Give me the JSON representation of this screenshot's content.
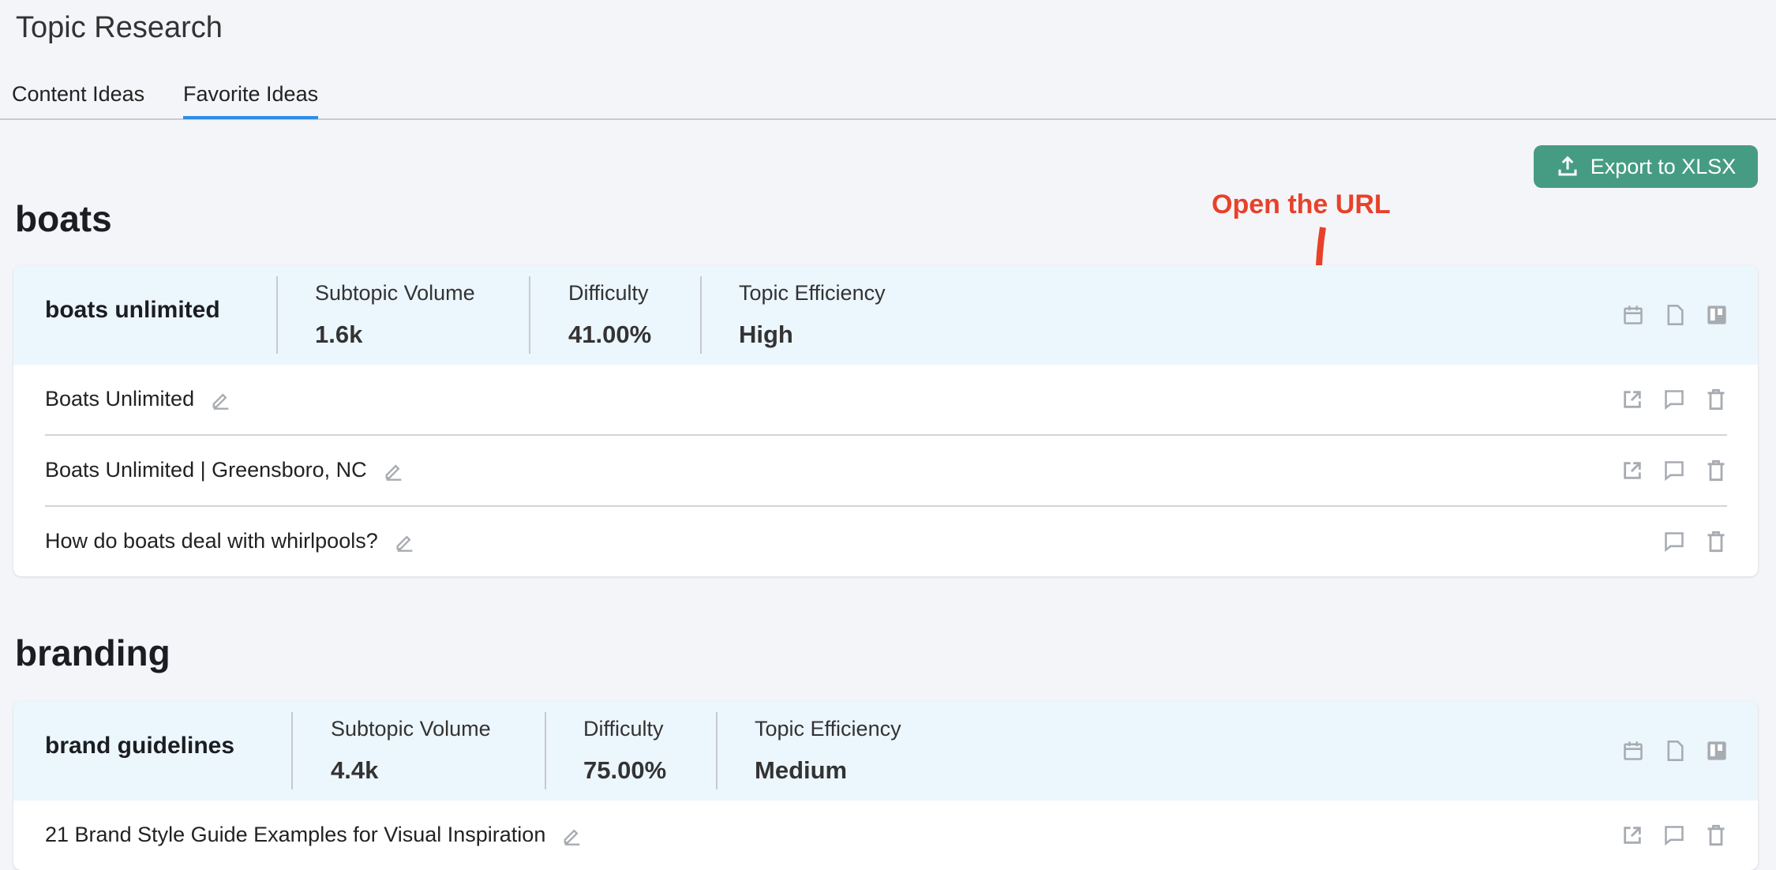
{
  "header": {
    "title": "Topic Research"
  },
  "tabs": [
    {
      "label": "Content Ideas",
      "active": false
    },
    {
      "label": "Favorite Ideas",
      "active": true
    }
  ],
  "toolbar": {
    "export_label": "Export to XLSX",
    "export_icon": "upload-icon",
    "export_color": "#469c82"
  },
  "annotation": {
    "text": "Open the URL",
    "color": "#e8412a"
  },
  "groups": [
    {
      "title": "boats",
      "topic": {
        "name": "boats unlimited",
        "metrics": [
          {
            "label": "Subtopic Volume",
            "value": "1.6k"
          },
          {
            "label": "Difficulty",
            "value": "41.00%"
          },
          {
            "label": "Topic Efficiency",
            "value": "High"
          }
        ]
      },
      "ideas": [
        {
          "text": "Boats Unlimited",
          "has_link": true
        },
        {
          "text": "Boats Unlimited | Greensboro, NC",
          "has_link": true
        },
        {
          "text": "How do boats deal with whirlpools?",
          "has_link": false
        }
      ]
    },
    {
      "title": "branding",
      "topic": {
        "name": "brand guidelines",
        "metrics": [
          {
            "label": "Subtopic Volume",
            "value": "4.4k"
          },
          {
            "label": "Difficulty",
            "value": "75.00%"
          },
          {
            "label": "Topic Efficiency",
            "value": "Medium"
          }
        ]
      },
      "ideas": [
        {
          "text": "21 Brand Style Guide Examples for Visual Inspiration",
          "has_link": true
        }
      ]
    }
  ]
}
